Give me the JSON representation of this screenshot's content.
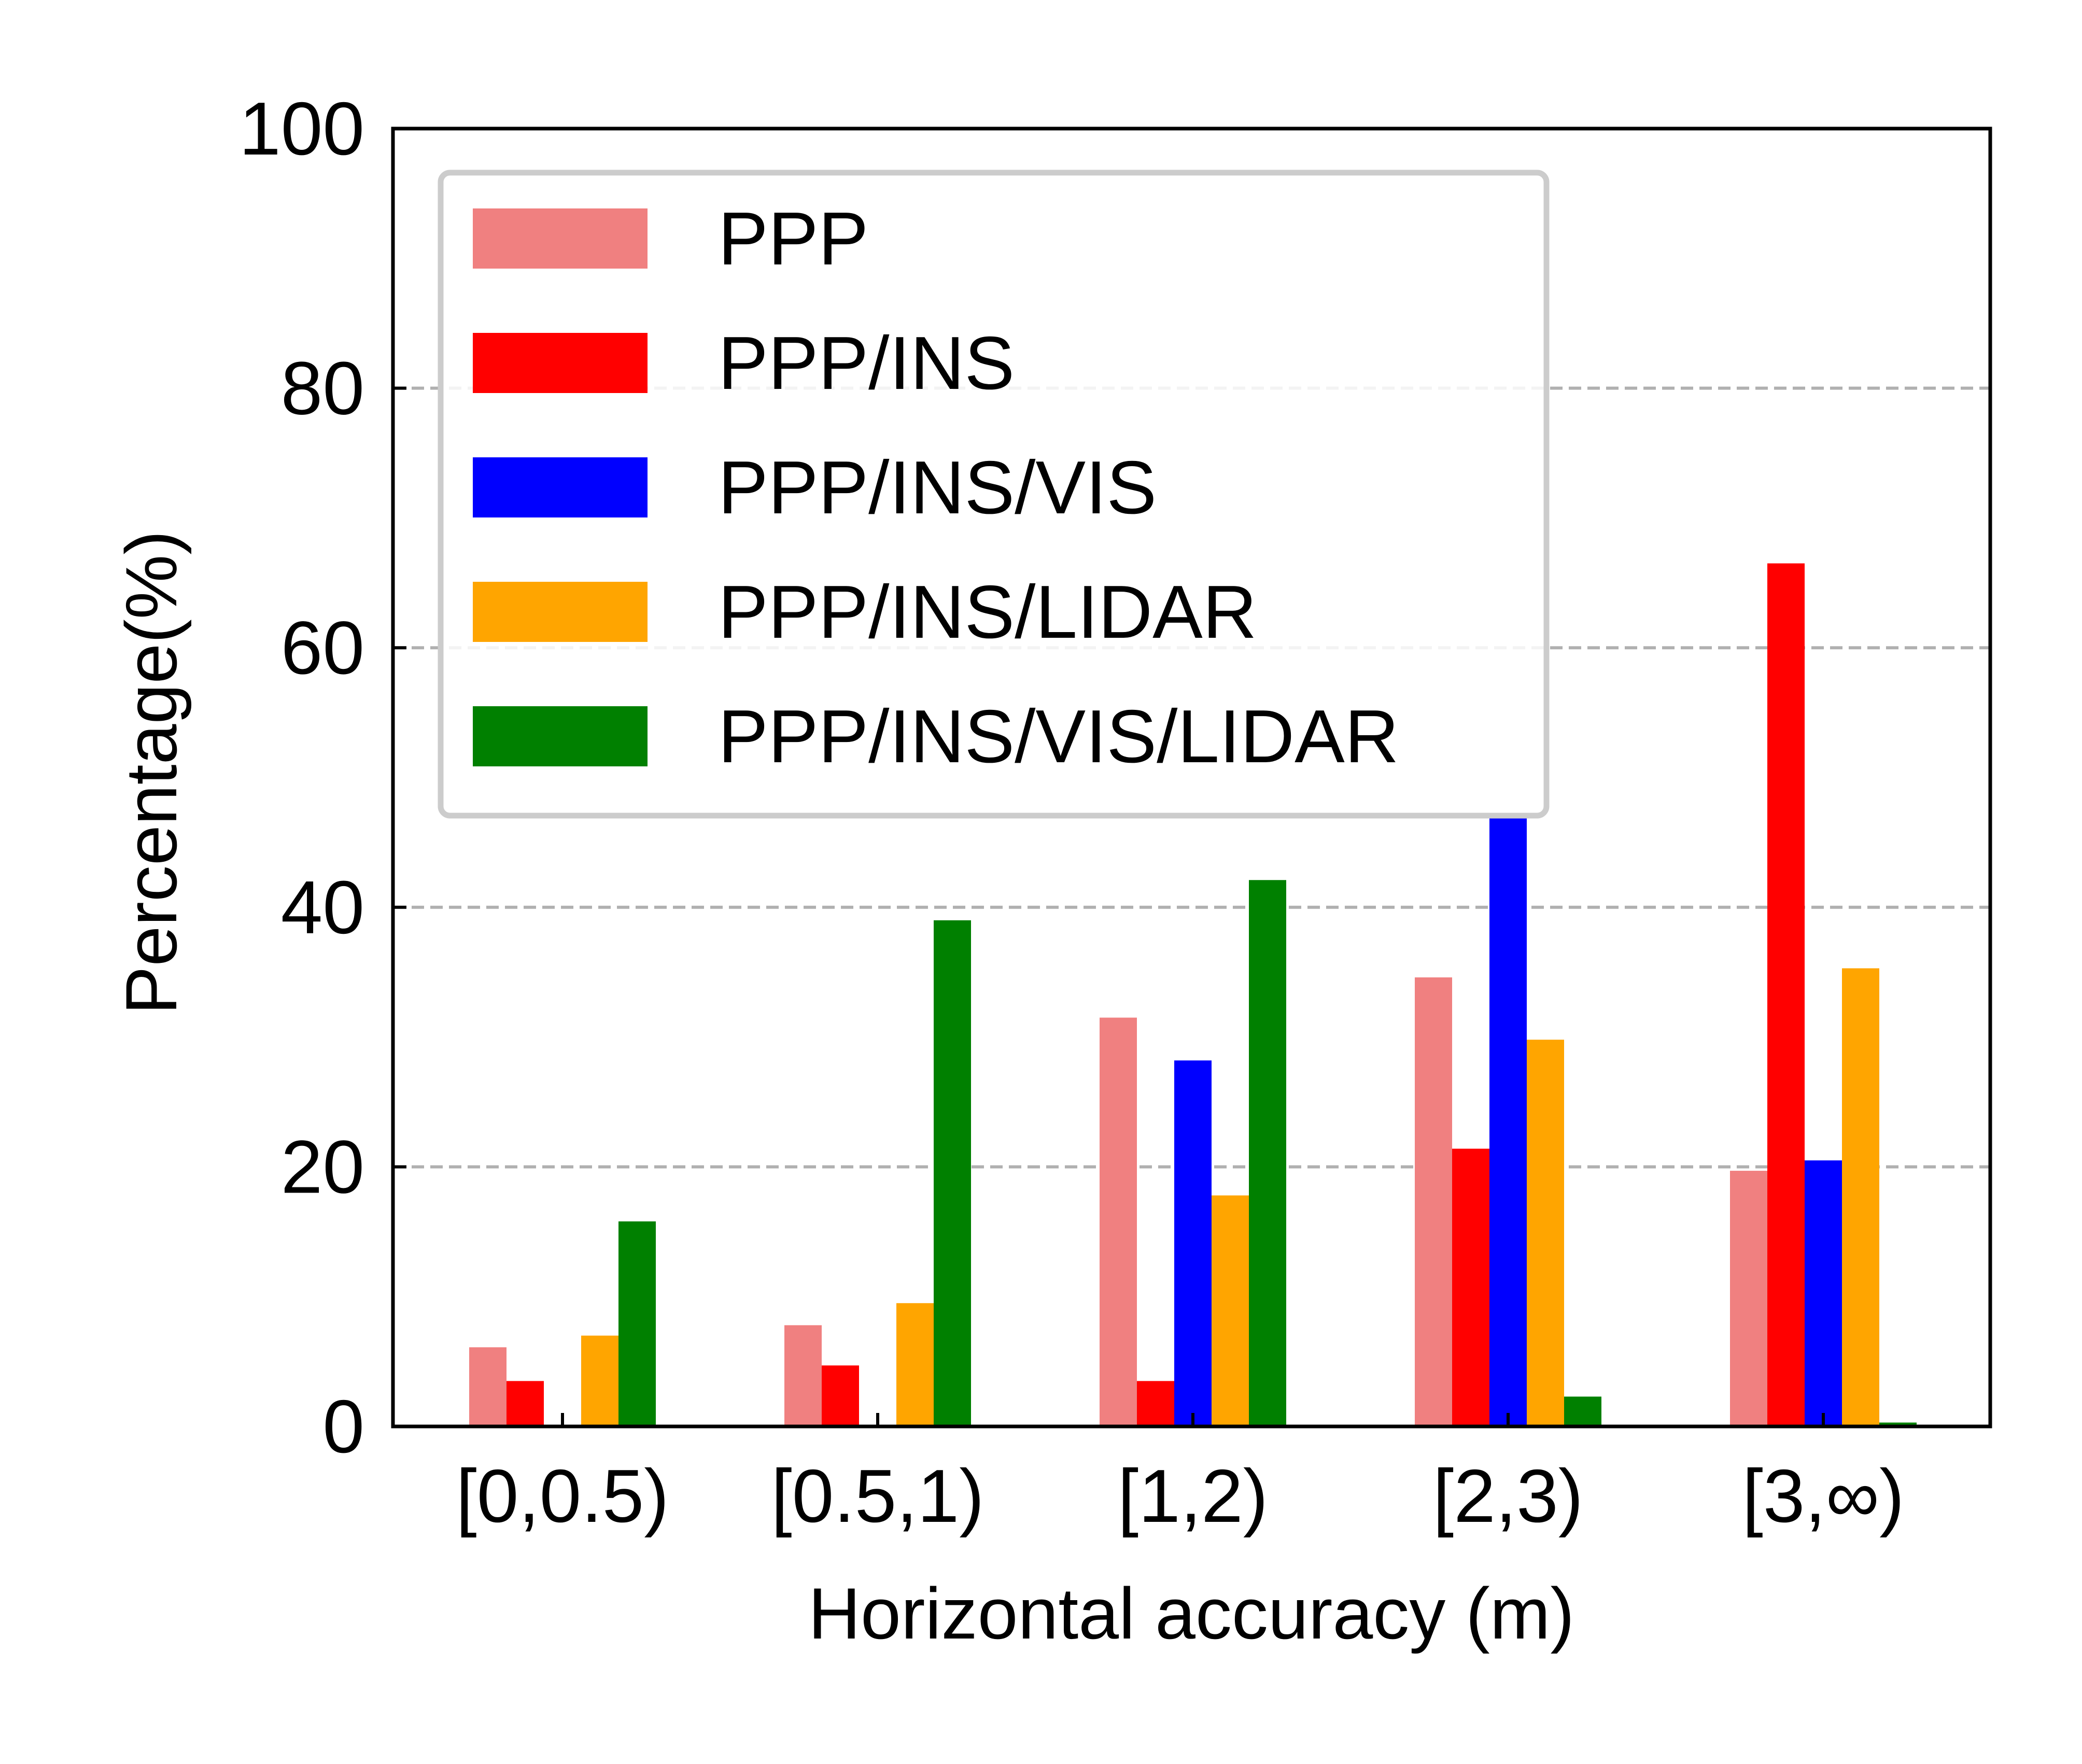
{
  "chart_data": {
    "type": "bar",
    "title": "",
    "xlabel": "Horizontal accuracy (m)",
    "ylabel": "Percentage(%)",
    "categories": [
      "[0,0.5)",
      "[0.5,1)",
      "[1,2)",
      "[2,3)",
      "[3,∞)"
    ],
    "ylim": [
      0,
      100
    ],
    "yticks": [
      "0",
      "20",
      "40",
      "60",
      "80",
      "100"
    ],
    "grid": "y, dashed at 20, 40, 60, 80",
    "legend": "top-left",
    "series": [
      {
        "name": "PPP",
        "color": "#f08080",
        "values": [
          6.1,
          7.8,
          31.5,
          34.6,
          19.7
        ]
      },
      {
        "name": "PPP/INS",
        "color": "#ff0000",
        "values": [
          3.5,
          4.7,
          3.5,
          21.4,
          66.5
        ]
      },
      {
        "name": "PPP/INS/VIS",
        "color": "#0000ff",
        "values": [
          0,
          0,
          28.2,
          47.2,
          20.5
        ]
      },
      {
        "name": "PPP/INS/LIDAR",
        "color": "#ffa500",
        "values": [
          7.0,
          9.5,
          17.8,
          29.8,
          35.3
        ]
      },
      {
        "name": "PPP/INS/VIS/LIDAR",
        "color": "#008000",
        "values": [
          15.8,
          39.0,
          42.1,
          2.3,
          0.3
        ]
      }
    ]
  }
}
